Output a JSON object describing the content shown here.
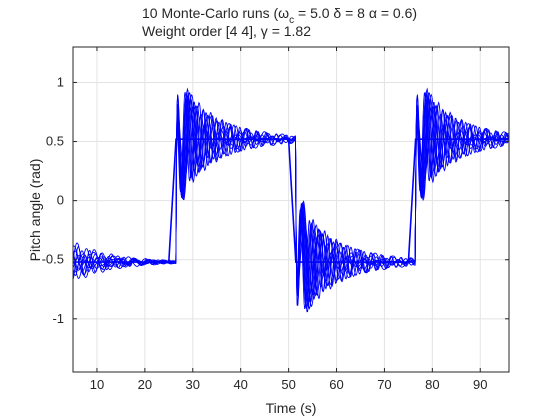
{
  "chart_data": {
    "type": "line",
    "title_line1": {
      "prefix": "10 Monte-Carlo runs  (ω",
      "subscript": "c",
      "rest": " = 5.0  δ = 8  α = 0.6)"
    },
    "title_line2": "Weight order [4 4],  γ = 1.82",
    "xlabel": "Time (s)",
    "ylabel": "Pitch angle (rad)",
    "xlim": [
      5,
      96
    ],
    "ylim": [
      -1.45,
      1.3
    ],
    "xticks": [
      10,
      20,
      30,
      40,
      50,
      60,
      70,
      80,
      90
    ],
    "yticks": [
      -1,
      -0.5,
      0,
      0.5,
      1
    ],
    "ytick_labels": [
      "-1",
      "-0.5",
      "0",
      "0.5",
      "1"
    ],
    "grid": true,
    "line_color": "#0000ff",
    "reference": {
      "description_free": true,
      "x": [
        5,
        25,
        26.5,
        50,
        51.5,
        75,
        76.5,
        96
      ],
      "y": [
        -0.52,
        -0.52,
        0.52,
        0.52,
        -0.52,
        -0.52,
        0.52,
        0.52
      ]
    },
    "series": [
      {
        "values_key": "run",
        "amp": 0.62,
        "freq": 2.2,
        "decay": 0.16,
        "pre": 0.18,
        "phase": 0.0
      },
      {
        "values_key": "run",
        "amp": 0.58,
        "freq": 2.6,
        "decay": 0.13,
        "pre": 0.1,
        "phase": 0.6
      },
      {
        "values_key": "run",
        "amp": 0.7,
        "freq": 1.9,
        "decay": 0.19,
        "pre": 0.14,
        "phase": 1.2
      },
      {
        "values_key": "run",
        "amp": 0.45,
        "freq": 3.0,
        "decay": 0.11,
        "pre": 0.08,
        "phase": 1.9
      },
      {
        "values_key": "run",
        "amp": 0.66,
        "freq": 2.4,
        "decay": 0.22,
        "pre": 0.16,
        "phase": 2.4
      },
      {
        "values_key": "run",
        "amp": 0.4,
        "freq": 1.7,
        "decay": 0.1,
        "pre": 0.06,
        "phase": 3.0
      },
      {
        "values_key": "run",
        "amp": 0.55,
        "freq": 2.8,
        "decay": 0.15,
        "pre": 0.12,
        "phase": 3.6
      },
      {
        "values_key": "run",
        "amp": 0.6,
        "freq": 2.1,
        "decay": 0.27,
        "pre": 0.09,
        "phase": 4.2
      },
      {
        "values_key": "run",
        "amp": 0.5,
        "freq": 3.3,
        "decay": 0.12,
        "pre": 0.15,
        "phase": 4.9
      },
      {
        "values_key": "run",
        "amp": 0.72,
        "freq": 2.0,
        "decay": 0.24,
        "pre": 0.07,
        "phase": 5.5
      }
    ]
  }
}
